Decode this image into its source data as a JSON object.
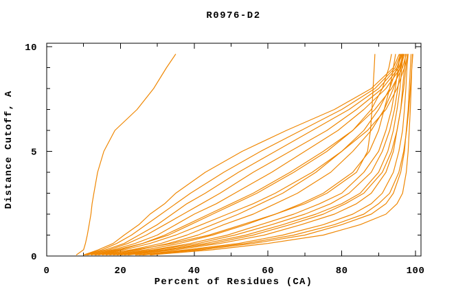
{
  "title": "R0976-D2",
  "chart_data": {
    "type": "line",
    "title": "R0976-D2",
    "xlabel": "Percent of Residues (CA)",
    "ylabel": "Distance Cutoff, A",
    "xlim": [
      0,
      100
    ],
    "ylim": [
      0,
      10
    ],
    "x_tick_step_minor": 10,
    "x_tick_labels": [
      0,
      20,
      40,
      60,
      80,
      100
    ],
    "y_tick_step_minor": 1,
    "y_tick_labels": [
      0,
      5,
      10
    ],
    "grid": false,
    "legend": "none",
    "frame": "full-box-with-inward-ticks",
    "line_color": "#ef8600",
    "axis_color": "#000000",
    "background_color": "#ffffff",
    "description": "Each curve is one model: percent of CA residues (x) superimposable within a given distance cutoff in Angstroms (y). Curves sampled at the cutoffs below; values are percents per series.",
    "cutoffs": [
      0.05,
      0.3,
      0.6,
      1,
      1.5,
      2,
      2.5,
      3,
      4,
      5,
      6,
      7,
      8,
      9,
      9.65
    ],
    "series": [
      {
        "percents": [
          8,
          10,
          10.5,
          11,
          11.5,
          12,
          12.3,
          12.8,
          13.8,
          15.5,
          18.5,
          24.5,
          29,
          32.5,
          35
        ]
      },
      {
        "percents": [
          28,
          45,
          60,
          75,
          85,
          92,
          95,
          96.5,
          97.5,
          98,
          98.3,
          98.6,
          98.8,
          99,
          99.2
        ]
      },
      {
        "percents": [
          26,
          42,
          56,
          70,
          80,
          88,
          92,
          94,
          96,
          97,
          97.5,
          98,
          98.3,
          98.6,
          98.8
        ]
      },
      {
        "percents": [
          25,
          40,
          54,
          67,
          78,
          86,
          90,
          93,
          95.5,
          96.8,
          97.6,
          98.2,
          98.6,
          99,
          99.3
        ]
      },
      {
        "percents": [
          24,
          38,
          52,
          64,
          75,
          83,
          88,
          91,
          94,
          95.5,
          96.5,
          97,
          97.4,
          97.7,
          98
        ]
      },
      {
        "percents": [
          22,
          35,
          47,
          59,
          69,
          78,
          84,
          88,
          92,
          94,
          95,
          96,
          96.5,
          97,
          97.3
        ]
      },
      {
        "percents": [
          21,
          33,
          45,
          56,
          66,
          75,
          81,
          86,
          91,
          93.5,
          95,
          96,
          96.8,
          97.4,
          97.8
        ]
      },
      {
        "percents": [
          20,
          32,
          43,
          54,
          64,
          73,
          80,
          85,
          90,
          92.5,
          94,
          95,
          95.8,
          96.3,
          96.6
        ]
      },
      {
        "percents": [
          19,
          30,
          41,
          51,
          61,
          70,
          77,
          82,
          88,
          91,
          93,
          94.3,
          95.2,
          96,
          96.4
        ]
      },
      {
        "percents": [
          18,
          29,
          39,
          49,
          58,
          67,
          74,
          80,
          86,
          90,
          92,
          93.5,
          94.5,
          95.3,
          95.8
        ]
      },
      {
        "percents": [
          17,
          27,
          36,
          45,
          54,
          62,
          69,
          75,
          83,
          87.5,
          90,
          91.5,
          93,
          94,
          94.6
        ]
      },
      {
        "percents": [
          16,
          25,
          33,
          41,
          48,
          56,
          62,
          68,
          77,
          83,
          88,
          91.5,
          94,
          95.8,
          96.6
        ]
      },
      {
        "percents": [
          15,
          23,
          31,
          38,
          45,
          52,
          58,
          64,
          73,
          80,
          86,
          90,
          93,
          95,
          96.2
        ]
      },
      {
        "percents": [
          14,
          21,
          28,
          35,
          42,
          49,
          56,
          62,
          72,
          80,
          87,
          92,
          95,
          97,
          98
        ]
      },
      {
        "percents": [
          13,
          20,
          26,
          32,
          38,
          44,
          50,
          56,
          66,
          75,
          83,
          89,
          93.5,
          96.5,
          97.5
        ]
      },
      {
        "percents": [
          13,
          24,
          34,
          44,
          53,
          62,
          70,
          76,
          84,
          87,
          87.8,
          88.2,
          88.5,
          88.8,
          89
        ]
      },
      {
        "percents": [
          12,
          19,
          26,
          33,
          39,
          45,
          51,
          57,
          67,
          76,
          83,
          88,
          91,
          92.8,
          93.5
        ]
      },
      {
        "percents": [
          12,
          18,
          24,
          30,
          35,
          40,
          46,
          51,
          61,
          70,
          79,
          86,
          92,
          96,
          97
        ]
      },
      {
        "percents": [
          11,
          17,
          22,
          27,
          32,
          37,
          42,
          47,
          56,
          66,
          76,
          84,
          91,
          95.5,
          96.8
        ]
      },
      {
        "percents": [
          10.5,
          16,
          21,
          25,
          30,
          34,
          38,
          43,
          52,
          62,
          72,
          82,
          90,
          95,
          96.4
        ]
      },
      {
        "percents": [
          10,
          15,
          19,
          23,
          27,
          31,
          35,
          39,
          48,
          58,
          69,
          80,
          89,
          94.5,
          96
        ]
      },
      {
        "percents": [
          10,
          14,
          18,
          21,
          25,
          28,
          32,
          35,
          43,
          53,
          65,
          78,
          88,
          94,
          95.6
        ]
      }
    ]
  }
}
